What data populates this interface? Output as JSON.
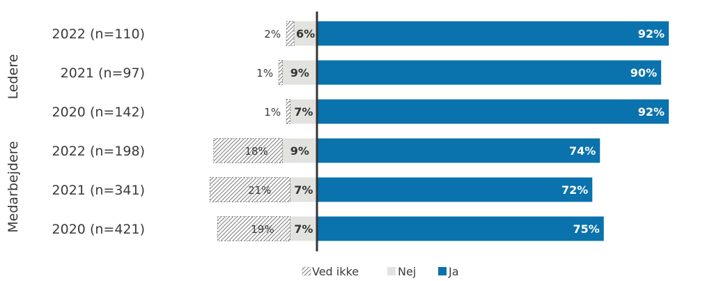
{
  "chart_data": {
    "type": "bar",
    "orientation": "horizontal",
    "stacked": "diverging",
    "groups": [
      "Ledere",
      "Medarbejdere"
    ],
    "categories": [
      "2022 (n=110)",
      "2021 (n=97)",
      "2020 (n=142)",
      "2022 (n=198)",
      "2021 (n=341)",
      "2020 (n=421)"
    ],
    "category_group": [
      0,
      0,
      0,
      1,
      1,
      1
    ],
    "series": [
      {
        "name": "Ved ikke",
        "values": [
          2,
          1,
          1,
          18,
          21,
          19
        ],
        "labels": [
          "2%",
          "1%",
          "1%",
          "18%",
          "21%",
          "19%"
        ]
      },
      {
        "name": "Nej",
        "values": [
          6,
          9,
          7,
          9,
          7,
          7
        ],
        "labels": [
          "6%",
          "9%",
          "7%",
          "9%",
          "7%",
          "7%"
        ]
      },
      {
        "name": "Ja",
        "values": [
          92,
          90,
          92,
          74,
          72,
          75
        ],
        "labels": [
          "92%",
          "90%",
          "92%",
          "74%",
          "72%",
          "75%"
        ]
      }
    ],
    "colors": {
      "ja": "#0a72ac",
      "nej": "#e2e2df",
      "ved_ikke": "#9a9a9a",
      "axis": "#333333"
    },
    "legend_position": "bottom",
    "grid": false
  }
}
